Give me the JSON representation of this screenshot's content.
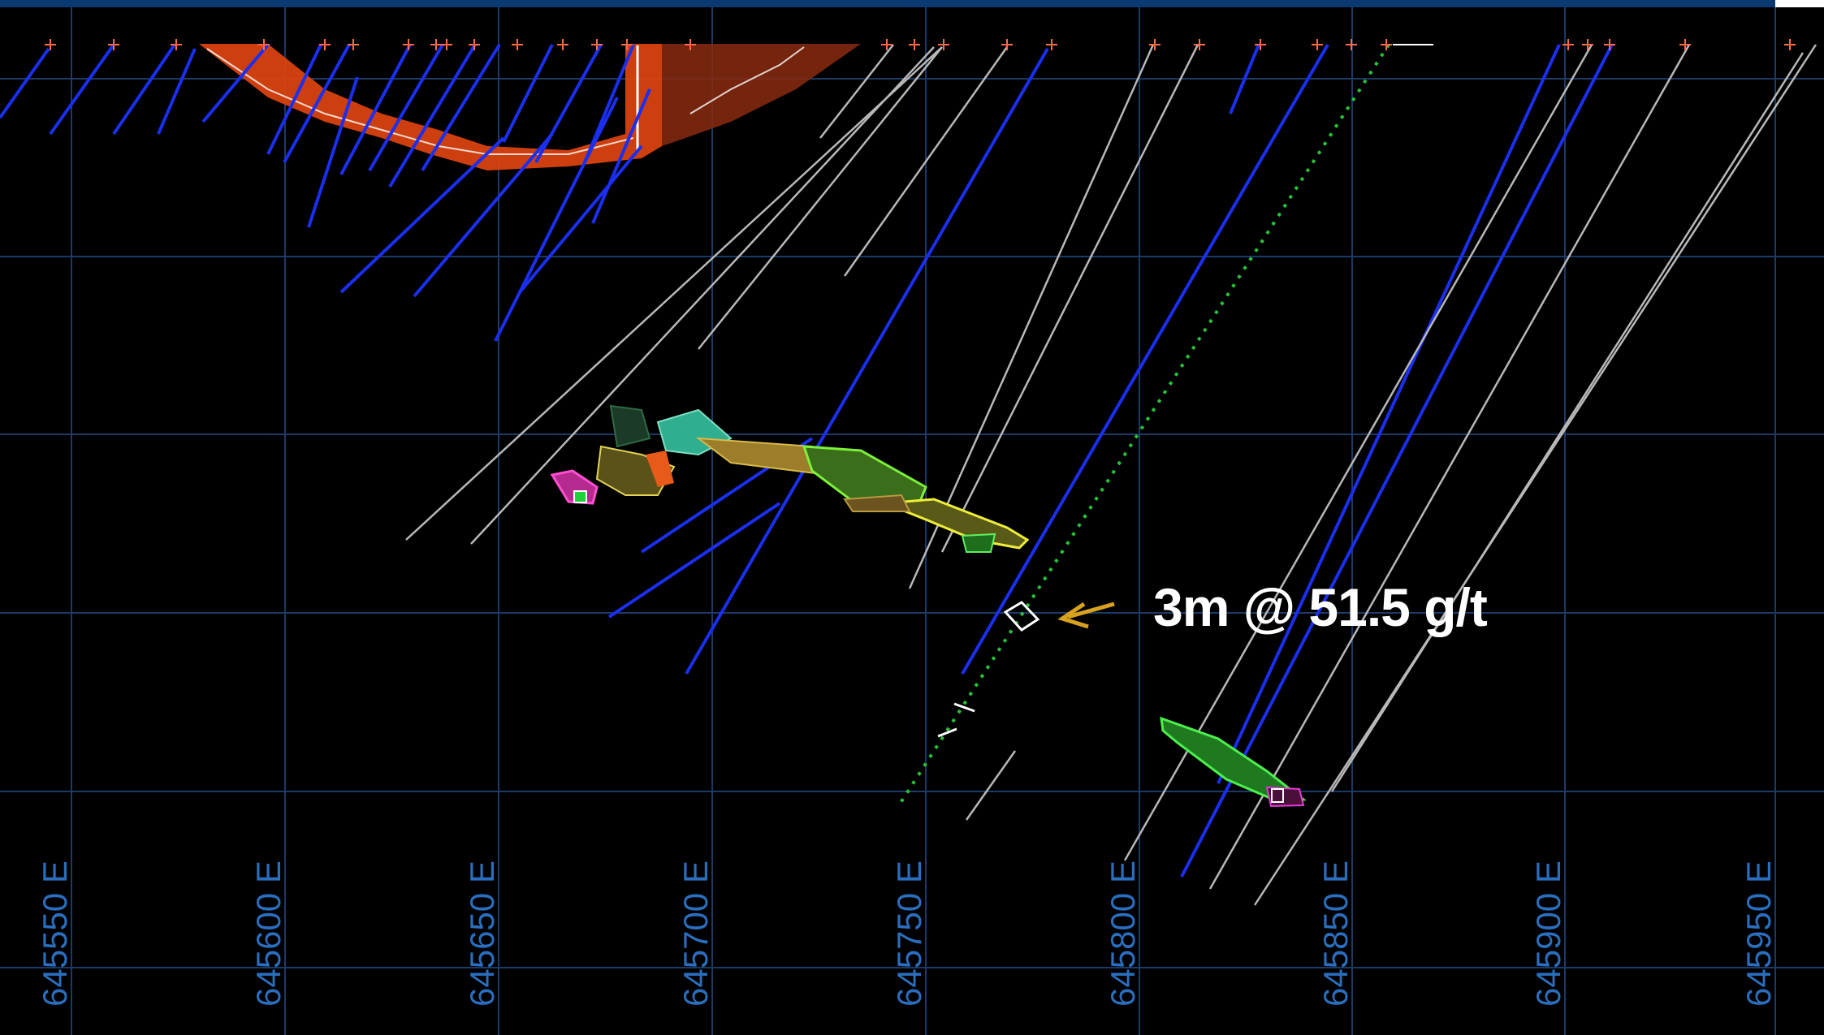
{
  "section": {
    "eastings": [
      "645550 E",
      "645600 E",
      "645650 E",
      "645700 E",
      "645750 E",
      "645800 E",
      "645850 E",
      "645900 E",
      "645950 E"
    ],
    "callout": "3m @ 51.5 g/t"
  },
  "colors": {
    "background": "#000000",
    "grid": "#1c3a66",
    "grid_label": "#2a6fbf",
    "top_bar": "#0b3a73",
    "drillhole_blue": "#1a2ff0",
    "drillhole_grey": "#b8b8b8",
    "drillhole_green_dotted": "#27c23a",
    "collar": "#ff6a4a",
    "orebody_orange": "#d8420f",
    "callout_arrow": "#d8a21e",
    "callout_text": "#ffffff"
  },
  "icons": [
    "collar-cross-icon",
    "callout-arrow-icon"
  ]
}
